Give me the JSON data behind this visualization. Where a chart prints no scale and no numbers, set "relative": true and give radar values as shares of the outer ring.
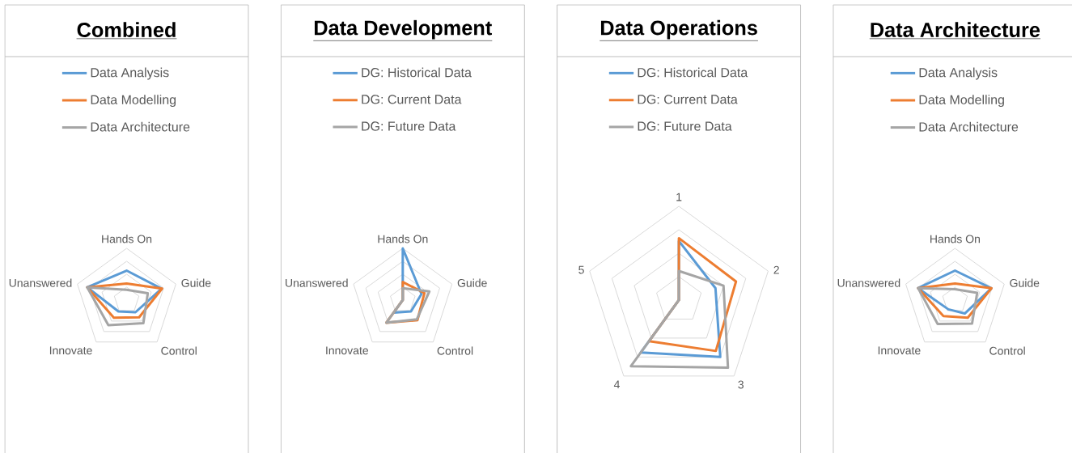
{
  "chart_data": [
    {
      "type": "radar",
      "title": "Combined",
      "categories": [
        "Hands On",
        "Guide",
        "Control",
        "Innovate",
        "Unanswered"
      ],
      "relative": true,
      "grid": true,
      "legend": "top",
      "series": [
        {
          "name": "Data Analysis",
          "color": "#5b9bd5",
          "values": [
            0.57,
            0.71,
            0.29,
            0.27,
            0.8
          ]
        },
        {
          "name": "Data Modelling",
          "color": "#ed7d31",
          "values": [
            0.32,
            0.72,
            0.41,
            0.42,
            0.8
          ]
        },
        {
          "name": "Data Architecture",
          "color": "#a5a5a5",
          "values": [
            0.2,
            0.43,
            0.55,
            0.6,
            0.8
          ]
        }
      ]
    },
    {
      "type": "radar",
      "title": "Data Development",
      "categories": [
        "Hands On",
        "Guide",
        "Control",
        "Innovate",
        "Unanswered"
      ],
      "relative": true,
      "grid": true,
      "legend": "top",
      "series": [
        {
          "name": "DG: Historical Data",
          "color": "#5b9bd5",
          "values": [
            1.0,
            0.38,
            0.27,
            0.3,
            0
          ]
        },
        {
          "name": "DG: Current Data",
          "color": "#ed7d31",
          "values": [
            0.35,
            0.44,
            0.48,
            0.54,
            0
          ]
        },
        {
          "name": "DG: Future Data",
          "color": "#a5a5a5",
          "values": [
            0.23,
            0.54,
            0.46,
            0.54,
            0
          ]
        }
      ]
    },
    {
      "type": "radar",
      "title": "Data Operations",
      "categories": [
        "1",
        "2",
        "3",
        "4",
        "5"
      ],
      "relative": true,
      "grid": true,
      "legend": "top",
      "series": [
        {
          "name": "DG: Historical Data",
          "color": "#5b9bd5",
          "values": [
            0.63,
            0.41,
            0.75,
            0.69,
            0
          ]
        },
        {
          "name": "DG: Current Data",
          "color": "#ed7d31",
          "values": [
            0.66,
            0.64,
            0.67,
            0.54,
            0
          ]
        },
        {
          "name": "DG: Future Data",
          "color": "#a5a5a5",
          "values": [
            0.31,
            0.5,
            0.89,
            0.87,
            0
          ]
        }
      ]
    },
    {
      "type": "radar",
      "title": "Data Architecture",
      "categories": [
        "Hands On",
        "Guide",
        "Control",
        "Innovate",
        "Unanswered"
      ],
      "relative": true,
      "grid": true,
      "legend": "top",
      "series": [
        {
          "name": "Data Analysis",
          "color": "#5b9bd5",
          "values": [
            0.57,
            0.74,
            0.32,
            0.22,
            0.75
          ]
        },
        {
          "name": "Data Modelling",
          "color": "#ed7d31",
          "values": [
            0.32,
            0.74,
            0.42,
            0.38,
            0.75
          ]
        },
        {
          "name": "Data Architecture",
          "color": "#a5a5a5",
          "values": [
            0.21,
            0.45,
            0.56,
            0.57,
            0.75
          ]
        }
      ]
    }
  ]
}
